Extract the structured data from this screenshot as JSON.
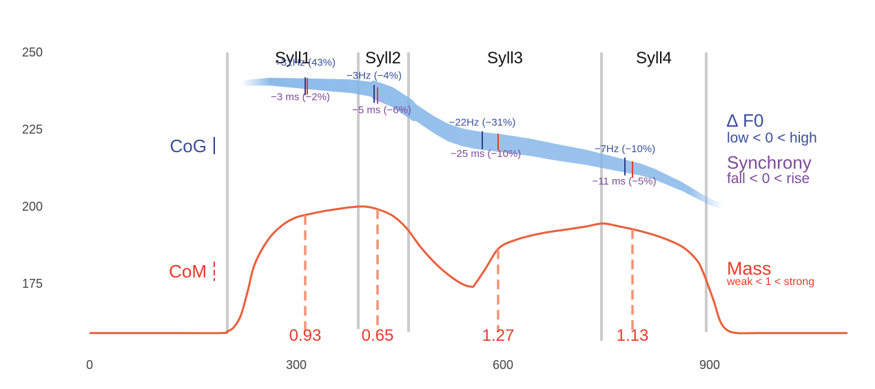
{
  "chart_data": {
    "type": "line",
    "xlim": [
      0,
      1100
    ],
    "ylim": [
      150,
      260
    ],
    "x_ticks": [
      "0",
      "300",
      "600",
      "900"
    ],
    "x_tick_values": [
      0,
      300,
      600,
      900
    ],
    "y_ticks": [
      "175",
      "200",
      "225",
      "250"
    ],
    "y_tick_values": [
      175,
      200,
      225,
      250
    ],
    "grid": false,
    "boundaries": [
      200,
      390,
      463,
      743,
      895
    ],
    "syllables": [
      {
        "label": "Syll1",
        "center": 295
      },
      {
        "label": "Syll2",
        "center": 426
      },
      {
        "label": "Syll3",
        "center": 603
      },
      {
        "label": "Syll4",
        "center": 819
      }
    ],
    "cog_series": {
      "x": [
        220,
        260,
        300,
        340,
        380,
        410,
        440,
        460,
        480,
        500,
        520,
        540,
        560,
        580,
        600,
        640,
        680,
        720,
        760,
        800,
        820,
        840,
        860,
        880,
        900,
        920
      ],
      "y": [
        240,
        240.5,
        240,
        239.5,
        239,
        238,
        235.5,
        232.5,
        229.5,
        226.5,
        224,
        222.5,
        221.6,
        221,
        220.5,
        219.2,
        217.5,
        216,
        214,
        212,
        210.5,
        208.5,
        206.5,
        204,
        201.5,
        200
      ]
    },
    "com_series": {
      "x": [
        0,
        100,
        190,
        200,
        210,
        220,
        230,
        240,
        260,
        280,
        300,
        320,
        340,
        360,
        380,
        400,
        420,
        440,
        460,
        480,
        500,
        520,
        540,
        555,
        560,
        575,
        590,
        600,
        610,
        630,
        660,
        690,
        720,
        745,
        770,
        800,
        830,
        860,
        880,
        890,
        905,
        915,
        925,
        940,
        970,
        1000,
        1100
      ],
      "y": [
        159,
        159,
        159,
        159.5,
        161,
        165,
        173,
        181.5,
        189.5,
        194,
        196.5,
        197.6,
        198.5,
        199.2,
        199.8,
        200,
        199,
        197,
        193,
        187,
        182,
        178,
        175,
        174,
        175,
        180,
        185.5,
        187.5,
        188.5,
        190,
        191.5,
        192.5,
        193.5,
        194.5,
        193.5,
        192,
        190,
        187,
        183,
        179,
        170,
        163,
        160,
        159,
        159,
        159,
        159
      ]
    },
    "cog_markers": [
      {
        "f0_x": 313,
        "f0_y": 239,
        "f0_label": "+31Hz (43%)",
        "sync_x": 316,
        "sync_y": 239,
        "sync_label": "−3 ms (−2%)"
      },
      {
        "f0_x": 413,
        "f0_y": 236.5,
        "f0_label": "−3Hz (−4%)",
        "sync_x": 418,
        "sync_y": 236,
        "sync_label": "−5 ms (−6%)"
      },
      {
        "f0_x": 570,
        "f0_y": 221.5,
        "f0_label": "−22Hz (−31%)",
        "sync_x": 593,
        "sync_y": 221,
        "sync_label": "−25 ms (−10%)"
      },
      {
        "f0_x": 777,
        "f0_y": 213,
        "f0_label": "−7Hz (−10%)",
        "sync_x": 788,
        "sync_y": 212,
        "sync_label": "−11 ms (−5%)"
      }
    ],
    "com_markers": [
      {
        "x": 313,
        "mass_label": "0.93"
      },
      {
        "x": 418,
        "mass_label": "0.65"
      },
      {
        "x": 593,
        "mass_label": "1.27"
      },
      {
        "x": 788,
        "mass_label": "1.13"
      }
    ],
    "legend_left": {
      "cog": "CoG",
      "com": "CoM"
    },
    "legend_right": {
      "f0_title": "∆ F0",
      "f0_scale": "low < 0 < high",
      "sync_title": "Synchrony",
      "sync_scale": "fall < 0 < rise",
      "mass_title": "Mass",
      "mass_scale": "weak < 1 < strong"
    },
    "colors": {
      "cog_band": "#7fb3e8",
      "f0_text": "#3a4f9a",
      "sync_text": "#7d4a99",
      "com_line": "#e8603c",
      "com_dash": "#f09476",
      "mass_text": "#e8392b",
      "boundary": "#cccccc",
      "sync_tick": "#e8392b",
      "f0_tick": "#2d3f85"
    }
  }
}
